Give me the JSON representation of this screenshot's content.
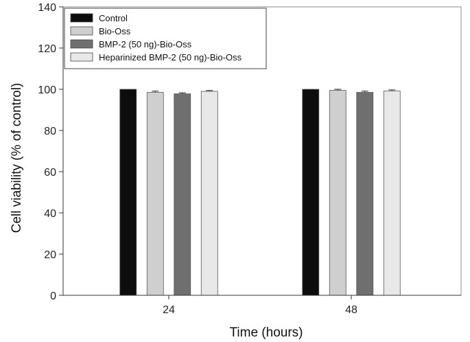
{
  "chart_data": {
    "type": "bar",
    "title": "",
    "xlabel": "Time (hours)",
    "ylabel": "Cell viability (% of control)",
    "ylim": [
      0,
      140
    ],
    "yticks": [
      0,
      20,
      40,
      60,
      80,
      100,
      120,
      140
    ],
    "categories": [
      "24",
      "48"
    ],
    "legend_position": "top-left",
    "grid": false,
    "series": [
      {
        "name": "Control",
        "values": [
          100,
          100
        ],
        "errors": [
          0,
          0
        ],
        "color": "#0d0d0d"
      },
      {
        "name": "Bio-Oss",
        "values": [
          98.5,
          99.5
        ],
        "errors": [
          0.6,
          0.5
        ],
        "color": "#cfcfcf"
      },
      {
        "name": "BMP-2 (50 ng)-Bio-Oss",
        "values": [
          97.8,
          98.5
        ],
        "errors": [
          0.5,
          0.6
        ],
        "color": "#6f6f6f"
      },
      {
        "name": "Heparinized BMP-2 (50 ng)-Bio-Oss",
        "values": [
          99.0,
          99.2
        ],
        "errors": [
          0.4,
          0.5
        ],
        "color": "#e8e8e8"
      }
    ]
  }
}
